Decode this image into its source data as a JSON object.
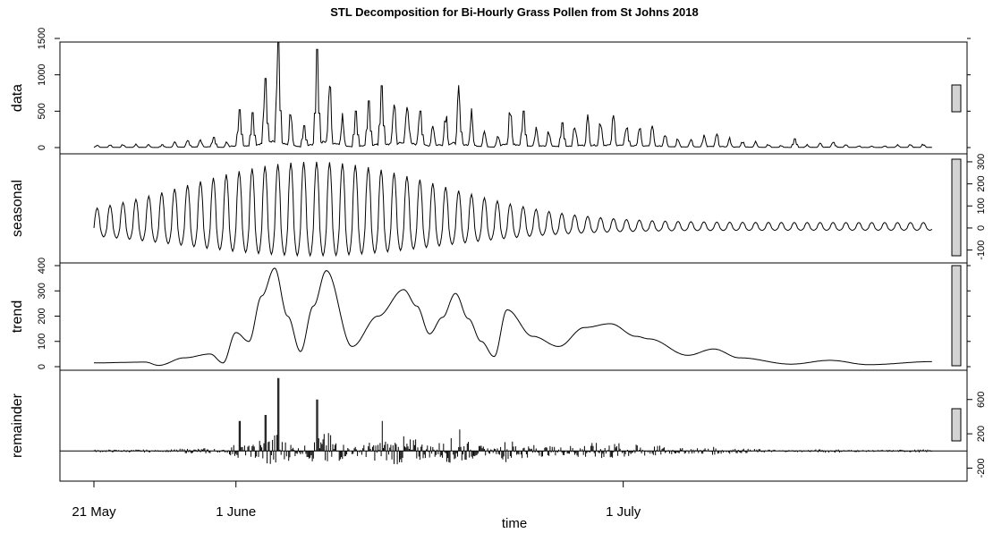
{
  "chart_data": {
    "type": "line",
    "title": "STL Decomposition for Bi-Hourly Grass Pollen from St Johns 2018",
    "xlabel": "time",
    "x_ticks": [
      "21 May",
      "1 June",
      "1 July"
    ],
    "x_range": [
      "2018-05-21",
      "2018-07-25"
    ],
    "sampling": "2-hourly",
    "panels": [
      {
        "name": "data",
        "ylabel": "data",
        "yticks": [
          0,
          500,
          1000,
          1500
        ],
        "left_ticks": true,
        "ylim": [
          0,
          1500
        ],
        "peaks": [
          {
            "date": "2018-05-26",
            "value": 40
          },
          {
            "date": "2018-05-28",
            "value": 90
          },
          {
            "date": "2018-05-30",
            "value": 140
          },
          {
            "date": "2018-06-01",
            "value": 520
          },
          {
            "date": "2018-06-02",
            "value": 480
          },
          {
            "date": "2018-06-03",
            "value": 950
          },
          {
            "date": "2018-06-04",
            "value": 1450
          },
          {
            "date": "2018-06-06",
            "value": 300
          },
          {
            "date": "2018-06-07",
            "value": 1350
          },
          {
            "date": "2018-06-10",
            "value": 500
          },
          {
            "date": "2018-06-11",
            "value": 640
          },
          {
            "date": "2018-06-12",
            "value": 850
          },
          {
            "date": "2018-06-14",
            "value": 480
          },
          {
            "date": "2018-06-15",
            "value": 500
          },
          {
            "date": "2018-06-18",
            "value": 600
          },
          {
            "date": "2018-06-23",
            "value": 500
          },
          {
            "date": "2018-06-26",
            "value": 340
          },
          {
            "date": "2018-07-01",
            "value": 250
          },
          {
            "date": "2018-07-14",
            "value": 120
          },
          {
            "date": "2018-07-17",
            "value": 70
          }
        ]
      },
      {
        "name": "seasonal",
        "ylabel": "seasonal",
        "yticks": [
          -100,
          0,
          100,
          200,
          300
        ],
        "left_ticks": false,
        "ylim": [
          -130,
          320
        ],
        "cycle_period_days": 1,
        "max_amplitude": 300,
        "peak_date": "2018-06-07"
      },
      {
        "name": "trend",
        "ylabel": "trend",
        "yticks": [
          0,
          100,
          200,
          300,
          400
        ],
        "left_ticks": true,
        "ylim": [
          0,
          400
        ],
        "points": [
          {
            "date": "2018-05-21",
            "value": 15
          },
          {
            "date": "2018-05-25",
            "value": 18
          },
          {
            "date": "2018-05-26",
            "value": 5
          },
          {
            "date": "2018-05-28",
            "value": 35
          },
          {
            "date": "2018-05-30",
            "value": 50
          },
          {
            "date": "2018-05-31",
            "value": 15
          },
          {
            "date": "2018-06-01",
            "value": 135
          },
          {
            "date": "2018-06-02",
            "value": 100
          },
          {
            "date": "2018-06-03",
            "value": 280
          },
          {
            "date": "2018-06-04",
            "value": 390
          },
          {
            "date": "2018-06-05",
            "value": 200
          },
          {
            "date": "2018-06-06",
            "value": 60
          },
          {
            "date": "2018-06-07",
            "value": 240
          },
          {
            "date": "2018-06-08",
            "value": 380
          },
          {
            "date": "2018-06-10",
            "value": 80
          },
          {
            "date": "2018-06-12",
            "value": 200
          },
          {
            "date": "2018-06-14",
            "value": 305
          },
          {
            "date": "2018-06-15",
            "value": 240
          },
          {
            "date": "2018-06-16",
            "value": 130
          },
          {
            "date": "2018-06-17",
            "value": 195
          },
          {
            "date": "2018-06-18",
            "value": 290
          },
          {
            "date": "2018-06-19",
            "value": 190
          },
          {
            "date": "2018-06-20",
            "value": 100
          },
          {
            "date": "2018-06-21",
            "value": 40
          },
          {
            "date": "2018-06-22",
            "value": 225
          },
          {
            "date": "2018-06-24",
            "value": 120
          },
          {
            "date": "2018-06-26",
            "value": 80
          },
          {
            "date": "2018-06-28",
            "value": 155
          },
          {
            "date": "2018-06-30",
            "value": 170
          },
          {
            "date": "2018-07-02",
            "value": 120
          },
          {
            "date": "2018-07-03",
            "value": 110
          },
          {
            "date": "2018-07-06",
            "value": 45
          },
          {
            "date": "2018-07-08",
            "value": 70
          },
          {
            "date": "2018-07-10",
            "value": 35
          },
          {
            "date": "2018-07-14",
            "value": 10
          },
          {
            "date": "2018-07-17",
            "value": 25
          },
          {
            "date": "2018-07-20",
            "value": 8
          },
          {
            "date": "2018-07-25",
            "value": 20
          }
        ]
      },
      {
        "name": "remainder",
        "ylabel": "remainder",
        "yticks": [
          -200,
          200,
          600
        ],
        "left_ticks": false,
        "ylim": [
          -300,
          900
        ],
        "zero_line": 0,
        "spikes": [
          {
            "date": "2018-06-01",
            "value": 350
          },
          {
            "date": "2018-06-03",
            "value": 420
          },
          {
            "date": "2018-06-04",
            "value": 850
          },
          {
            "date": "2018-06-07",
            "value": 600
          },
          {
            "date": "2018-06-12",
            "value": 350
          },
          {
            "date": "2018-06-18",
            "value": 250
          }
        ]
      }
    ],
    "grid": false,
    "line_color": "#000000",
    "scale_bar_color": "#d3d3d3"
  }
}
